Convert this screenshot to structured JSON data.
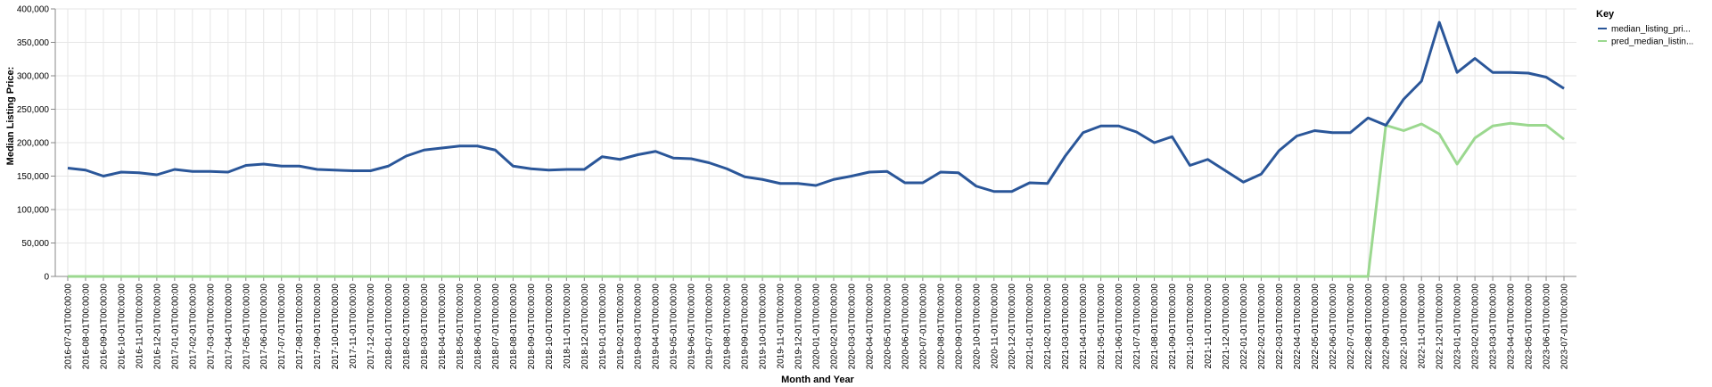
{
  "chart_data": {
    "type": "line",
    "xlabel": "Month and Year",
    "ylabel": "Median Listing Price:",
    "ylim": [
      0,
      400000
    ],
    "yticks": [
      0,
      50000,
      100000,
      150000,
      200000,
      250000,
      300000,
      350000,
      400000
    ],
    "grid": true,
    "legend": {
      "title": "Key",
      "placement": "top-right"
    },
    "x": [
      "2016-07-01T00:00:00",
      "2016-08-01T00:00:00",
      "2016-09-01T00:00:00",
      "2016-10-01T00:00:00",
      "2016-11-01T00:00:00",
      "2016-12-01T00:00:00",
      "2017-01-01T00:00:00",
      "2017-02-01T00:00:00",
      "2017-03-01T00:00:00",
      "2017-04-01T00:00:00",
      "2017-05-01T00:00:00",
      "2017-06-01T00:00:00",
      "2017-07-01T00:00:00",
      "2017-08-01T00:00:00",
      "2017-09-01T00:00:00",
      "2017-10-01T00:00:00",
      "2017-11-01T00:00:00",
      "2017-12-01T00:00:00",
      "2018-01-01T00:00:00",
      "2018-02-01T00:00:00",
      "2018-03-01T00:00:00",
      "2018-04-01T00:00:00",
      "2018-05-01T00:00:00",
      "2018-06-01T00:00:00",
      "2018-07-01T00:00:00",
      "2018-08-01T00:00:00",
      "2018-09-01T00:00:00",
      "2018-10-01T00:00:00",
      "2018-11-01T00:00:00",
      "2018-12-01T00:00:00",
      "2019-01-01T00:00:00",
      "2019-02-01T00:00:00",
      "2019-03-01T00:00:00",
      "2019-04-01T00:00:00",
      "2019-05-01T00:00:00",
      "2019-06-01T00:00:00",
      "2019-07-01T00:00:00",
      "2019-08-01T00:00:00",
      "2019-09-01T00:00:00",
      "2019-10-01T00:00:00",
      "2019-11-01T00:00:00",
      "2019-12-01T00:00:00",
      "2020-01-01T00:00:00",
      "2020-02-01T00:00:00",
      "2020-03-01T00:00:00",
      "2020-04-01T00:00:00",
      "2020-05-01T00:00:00",
      "2020-06-01T00:00:00",
      "2020-07-01T00:00:00",
      "2020-08-01T00:00:00",
      "2020-09-01T00:00:00",
      "2020-10-01T00:00:00",
      "2020-11-01T00:00:00",
      "2020-12-01T00:00:00",
      "2021-01-01T00:00:00",
      "2021-02-01T00:00:00",
      "2021-03-01T00:00:00",
      "2021-04-01T00:00:00",
      "2021-05-01T00:00:00",
      "2021-06-01T00:00:00",
      "2021-07-01T00:00:00",
      "2021-08-01T00:00:00",
      "2021-09-01T00:00:00",
      "2021-10-01T00:00:00",
      "2021-11-01T00:00:00",
      "2021-12-01T00:00:00",
      "2022-01-01T00:00:00",
      "2022-02-01T00:00:00",
      "2022-03-01T00:00:00",
      "2022-04-01T00:00:00",
      "2022-05-01T00:00:00",
      "2022-06-01T00:00:00",
      "2022-07-01T00:00:00",
      "2022-08-01T00:00:00",
      "2022-09-01T00:00:00",
      "2022-10-01T00:00:00",
      "2022-11-01T00:00:00",
      "2022-12-01T00:00:00",
      "2023-01-01T00:00:00",
      "2023-02-01T00:00:00",
      "2023-03-01T00:00:00",
      "2023-04-01T00:00:00",
      "2023-05-01T00:00:00",
      "2023-06-01T00:00:00",
      "2023-07-01T00:00:00"
    ],
    "series": [
      {
        "name": "median_listing_pri...",
        "color": "#2a5699",
        "values": [
          162000,
          159000,
          150000,
          156000,
          155000,
          152000,
          160000,
          157000,
          157000,
          156000,
          166000,
          168000,
          165000,
          165000,
          160000,
          159000,
          158000,
          158000,
          165000,
          180000,
          189000,
          192000,
          195000,
          195000,
          189000,
          165000,
          161000,
          159000,
          160000,
          160000,
          179000,
          175000,
          182000,
          187000,
          177000,
          176000,
          170000,
          161000,
          149000,
          145000,
          139000,
          139000,
          136000,
          145000,
          150000,
          156000,
          157000,
          140000,
          140000,
          156000,
          155000,
          135000,
          127000,
          127000,
          140000,
          139000,
          180000,
          215000,
          225000,
          225000,
          216000,
          200000,
          209000,
          166000,
          175000,
          158000,
          141000,
          153000,
          188000,
          210000,
          218000,
          215000,
          215000,
          237000,
          226000,
          265000,
          292000,
          380000,
          305000,
          326000,
          305000,
          305000,
          304000,
          298000,
          281000
        ]
      },
      {
        "name": "pred_median_listin...",
        "color": "#9bd88f",
        "values": [
          0,
          0,
          0,
          0,
          0,
          0,
          0,
          0,
          0,
          0,
          0,
          0,
          0,
          0,
          0,
          0,
          0,
          0,
          0,
          0,
          0,
          0,
          0,
          0,
          0,
          0,
          0,
          0,
          0,
          0,
          0,
          0,
          0,
          0,
          0,
          0,
          0,
          0,
          0,
          0,
          0,
          0,
          0,
          0,
          0,
          0,
          0,
          0,
          0,
          0,
          0,
          0,
          0,
          0,
          0,
          0,
          0,
          0,
          0,
          0,
          0,
          0,
          0,
          0,
          0,
          0,
          0,
          0,
          0,
          0,
          0,
          0,
          0,
          0,
          226000,
          218000,
          228000,
          213000,
          168000,
          207000,
          225000,
          229000,
          226000,
          226000,
          205000
        ]
      }
    ]
  }
}
